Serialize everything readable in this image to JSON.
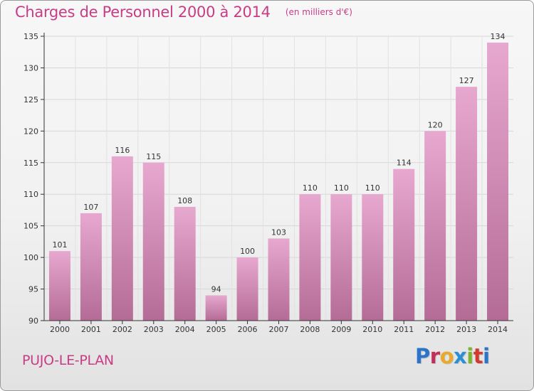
{
  "header": {
    "title": "Charges de Personnel 2000 à 2014",
    "subtitle": "(en milliers d'€)"
  },
  "footer": {
    "commune": "PUJO-LE-PLAN",
    "brand": "Proxiti"
  },
  "colors": {
    "accent": "#c83c86",
    "bar_light": "#e7a8cf",
    "bar_dark": "#b46c96"
  },
  "chart_data": {
    "type": "bar",
    "title": "Charges de Personnel 2000 à 2014",
    "subtitle": "(en milliers d'€)",
    "xlabel": "",
    "ylabel": "",
    "categories": [
      "2000",
      "2001",
      "2002",
      "2003",
      "2004",
      "2005",
      "2006",
      "2007",
      "2008",
      "2009",
      "2010",
      "2011",
      "2012",
      "2013",
      "2014"
    ],
    "values": [
      101,
      107,
      116,
      115,
      108,
      94,
      100,
      103,
      110,
      110,
      110,
      114,
      120,
      127,
      134
    ],
    "ylim": [
      90,
      135
    ],
    "yticks": [
      90,
      95,
      100,
      105,
      110,
      115,
      120,
      125,
      130,
      135
    ],
    "grid": true,
    "data_labels": true
  }
}
